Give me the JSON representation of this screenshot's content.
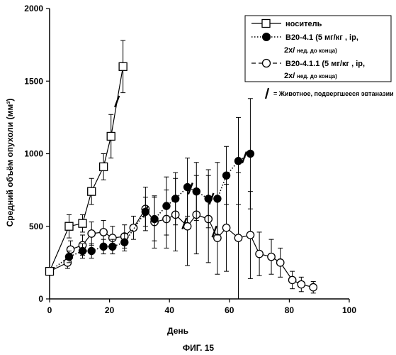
{
  "chart_data": {
    "type": "line",
    "xlabel": "День",
    "ylabel": "Средний объём опухоли (мм³)",
    "xlim": [
      0,
      100
    ],
    "ylim": [
      0,
      2000
    ],
    "xticks": [
      "0",
      "20",
      "40",
      "60",
      "80",
      "100"
    ],
    "yticks": [
      "0",
      "500",
      "1000",
      "1500",
      "2000"
    ],
    "grid": false,
    "legend_position": "top-right",
    "series": [
      {
        "name": "носитель",
        "marker": "open-square",
        "line": "solid",
        "points": [
          {
            "x": 0,
            "y": 190,
            "err": 20
          },
          {
            "x": 6.5,
            "y": 500,
            "err": 80
          },
          {
            "x": 11,
            "y": 520,
            "err": 60
          },
          {
            "x": 14,
            "y": 740,
            "err": 90
          },
          {
            "x": 18,
            "y": 910,
            "err": 90
          },
          {
            "x": 20.5,
            "y": 1120,
            "err": 150
          },
          {
            "x": 24.5,
            "y": 1600,
            "err": 180
          }
        ]
      },
      {
        "name": "B20-4.1",
        "marker": "filled-circle",
        "line": "dotted",
        "points": [
          {
            "x": 0,
            "y": 190,
            "err": 20
          },
          {
            "x": 6.5,
            "y": 290,
            "err": 40
          },
          {
            "x": 11,
            "y": 330,
            "err": 50
          },
          {
            "x": 14,
            "y": 330,
            "err": 50
          },
          {
            "x": 18,
            "y": 360,
            "err": 50
          },
          {
            "x": 21,
            "y": 360,
            "err": 50
          },
          {
            "x": 25,
            "y": 390,
            "err": 60
          },
          {
            "x": 32,
            "y": 600,
            "err": 100
          },
          {
            "x": 35,
            "y": 550,
            "err": 150
          },
          {
            "x": 39,
            "y": 640,
            "err": 200
          },
          {
            "x": 42,
            "y": 690,
            "err": 180
          },
          {
            "x": 46,
            "y": 770,
            "err": 200
          },
          {
            "x": 49,
            "y": 740,
            "err": 200
          },
          {
            "x": 53,
            "y": 690,
            "err": 200
          },
          {
            "x": 56,
            "y": 690,
            "err": 250
          },
          {
            "x": 59,
            "y": 850,
            "err": 200
          },
          {
            "x": 63,
            "y": 950,
            "err": 300
          },
          {
            "x": 67,
            "y": 1000,
            "err": 380
          }
        ]
      },
      {
        "name": "B20-4.1.1",
        "marker": "open-circle",
        "line": "solid",
        "points": [
          {
            "x": 0,
            "y": 190,
            "err": 20
          },
          {
            "x": 6,
            "y": 250,
            "err": 40
          },
          {
            "x": 7,
            "y": 340,
            "err": 60
          },
          {
            "x": 11,
            "y": 370,
            "err": 70
          },
          {
            "x": 14,
            "y": 450,
            "err": 80
          },
          {
            "x": 18,
            "y": 460,
            "err": 80
          },
          {
            "x": 21,
            "y": 420,
            "err": 80
          },
          {
            "x": 25,
            "y": 430,
            "err": 80
          },
          {
            "x": 28,
            "y": 490,
            "err": 80
          },
          {
            "x": 32,
            "y": 620,
            "err": 150
          },
          {
            "x": 35,
            "y": 530,
            "err": 180
          },
          {
            "x": 39,
            "y": 550,
            "err": 200
          },
          {
            "x": 42,
            "y": 580,
            "err": 250
          },
          {
            "x": 46,
            "y": 500,
            "err": 270
          },
          {
            "x": 49,
            "y": 580,
            "err": 270
          },
          {
            "x": 53,
            "y": 550,
            "err": 300
          },
          {
            "x": 56,
            "y": 420,
            "err": 250
          },
          {
            "x": 59,
            "y": 490,
            "err": 300
          },
          {
            "x": 63,
            "y": 420,
            "err": 450
          },
          {
            "x": 67,
            "y": 440,
            "err": 300
          },
          {
            "x": 70,
            "y": 310,
            "err": 150
          },
          {
            "x": 74,
            "y": 290,
            "err": 120
          },
          {
            "x": 77,
            "y": 250,
            "err": 100
          },
          {
            "x": 81,
            "y": 130,
            "err": 60
          },
          {
            "x": 84,
            "y": 100,
            "err": 50
          },
          {
            "x": 88,
            "y": 80,
            "err": 40
          }
        ]
      }
    ],
    "euthanasia_marks": [
      {
        "series": "носитель",
        "x": 22.5
      },
      {
        "series": "B20-4.1",
        "x": 32
      },
      {
        "series": "B20-4.1",
        "x": 47
      },
      {
        "series": "B20-4.1",
        "x": 54
      },
      {
        "series": "B20-4.1",
        "x": 65
      },
      {
        "series": "B20-4.1.1",
        "x": 45
      },
      {
        "series": "B20-4.1.1",
        "x": 55
      }
    ]
  },
  "legend": {
    "items": [
      {
        "label": "носитель"
      },
      {
        "label": "B20-4.1 (5 мг/кг , ip,",
        "label2": "2x/",
        "label2_small": "нед. до конца)"
      },
      {
        "label": "B20-4.1.1 (5 мг/кг , ip,",
        "label2": "2x/",
        "label2_small": "нед. до конца)"
      }
    ],
    "euthanasia_label": "= Животное, подвергшееся эвтаназии"
  },
  "caption": "ФИГ. 15"
}
